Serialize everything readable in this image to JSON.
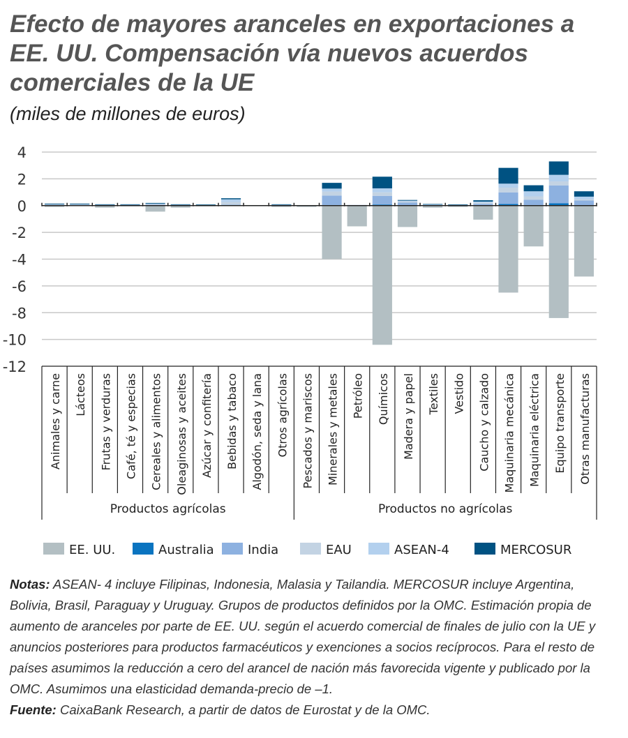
{
  "title": "Efecto de mayores aranceles en exportaciones a EE. UU. Compensación vía nuevos acuerdos comerciales de la UE",
  "subtitle": "(miles de millones de euros)",
  "chart_data": {
    "type": "bar",
    "stacked": true,
    "ylim": [
      -12,
      4
    ],
    "yticks": [
      4,
      2,
      0,
      -2,
      -4,
      -6,
      -8,
      -10,
      -12
    ],
    "grid": true,
    "legend_position": "bottom",
    "categories": [
      "Animales y carne",
      "Lácteos",
      "Frutas y verduras",
      "Café, té y especias",
      "Cereales y alimentos",
      "Oleaginosas y aceites",
      "Azúcar y confitería",
      "Bebidas y tabaco",
      "Algodón, seda y lana",
      "Otros agrícolas",
      "Pescados y mariscos",
      "Minerales y metales",
      "Petróleo",
      "Químicos",
      "Madera y papel",
      "Textiles",
      "Vestido",
      "Caucho y calzado",
      "Maquinaria mecánica",
      "Maquinaria eléctrica",
      "Equipo transporte",
      "Otras manufacturas"
    ],
    "groups": [
      {
        "label": "Productos agrícolas",
        "count": 10
      },
      {
        "label": "Productos no agrícolas",
        "count": 12
      }
    ],
    "series": [
      {
        "name": "EE. UU.",
        "color": "#b3bfc3",
        "values": [
          -0.1,
          -0.03,
          -0.15,
          -0.05,
          -0.45,
          -0.15,
          -0.05,
          -0.02,
          -0.02,
          -0.1,
          -0.1,
          -4.0,
          -1.55,
          -10.4,
          -1.6,
          -0.15,
          -0.1,
          -1.05,
          -6.5,
          -3.05,
          -8.4,
          -5.3
        ]
      },
      {
        "name": "Australia",
        "color": "#0a74c0",
        "values": [
          0.02,
          0.02,
          0.01,
          0.01,
          0.02,
          0.01,
          0.01,
          0.02,
          0.0,
          0.01,
          0.0,
          0.05,
          0.0,
          0.08,
          0.02,
          0.01,
          0.0,
          0.03,
          0.12,
          0.03,
          0.17,
          0.03
        ]
      },
      {
        "name": "India",
        "color": "#8db1e0",
        "values": [
          0.03,
          0.03,
          0.03,
          0.02,
          0.05,
          0.03,
          0.02,
          0.05,
          0.01,
          0.03,
          0.02,
          0.7,
          0.02,
          0.65,
          0.2,
          0.03,
          0.03,
          0.1,
          0.87,
          0.4,
          1.34,
          0.35
        ]
      },
      {
        "name": "EAU",
        "color": "#c3d3e3",
        "values": [
          0.03,
          0.03,
          0.03,
          0.02,
          0.05,
          0.02,
          0.02,
          0.2,
          0.0,
          0.02,
          0.01,
          0.3,
          0.02,
          0.26,
          0.1,
          0.02,
          0.02,
          0.1,
          0.35,
          0.26,
          0.3,
          0.09
        ]
      },
      {
        "name": "ASEAN-4",
        "color": "#b3d0ee",
        "values": [
          0.02,
          0.02,
          0.02,
          0.02,
          0.03,
          0.02,
          0.01,
          0.2,
          0.01,
          0.02,
          0.01,
          0.22,
          0.01,
          0.3,
          0.05,
          0.02,
          0.02,
          0.07,
          0.3,
          0.38,
          0.49,
          0.2
        ]
      },
      {
        "name": "MERCOSUR",
        "color": "#005282",
        "values": [
          0.05,
          0.05,
          0.01,
          0.03,
          0.05,
          0.02,
          0.02,
          0.08,
          0.01,
          0.02,
          0.0,
          0.43,
          0.0,
          0.87,
          0.05,
          0.04,
          0.01,
          0.1,
          1.18,
          0.45,
          1.0,
          0.4
        ]
      }
    ]
  },
  "notes": {
    "notes_label": "Notas:",
    "notes_text": " ASEAN- 4 incluye Filipinas, Indonesia, Malasia y Tailandia. MERCOSUR incluye Argentina, Bolivia, Brasil, Paraguay y Uruguay. Grupos de productos definidos por la OMC. Estimación propia de aumento de aranceles por parte de EE. UU. según el acuerdo comercial de finales de julio con la UE y anuncios posteriores para productos farmacéuticos y exenciones a socios recíprocos. Para el resto de países asumimos la reducción a cero del arancel de nación más favorecida vigente y publicado por la OMC. Asumimos una elasticidad demanda-precio de –1.",
    "source_label": "Fuente:",
    "source_text": " CaixaBank Research, a partir de datos de Eurostat y de la OMC."
  }
}
